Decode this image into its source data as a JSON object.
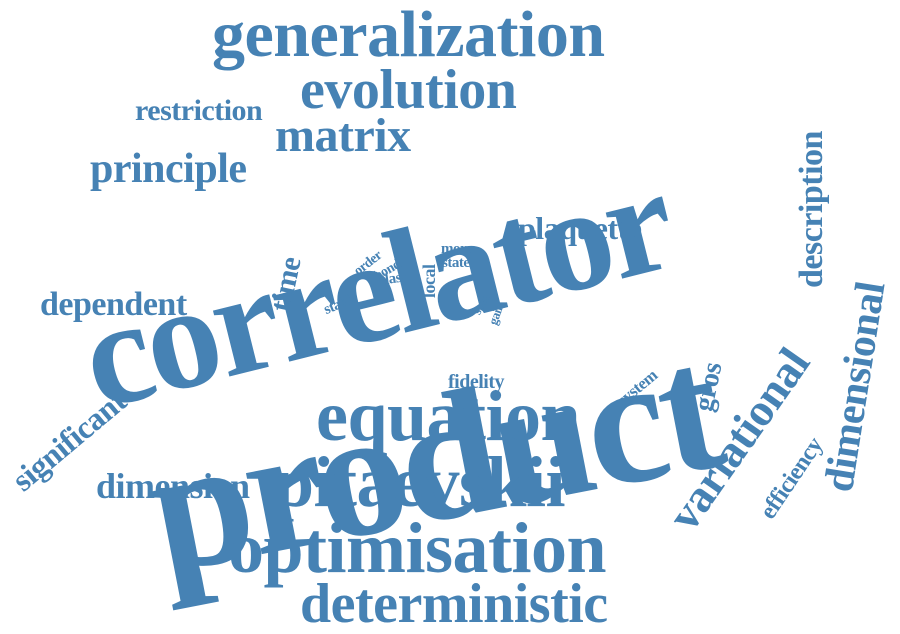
{
  "accent_color": "#4682b4",
  "background_color": "#ffffff",
  "words": {
    "generalization": "generalization",
    "evolution": "evolution",
    "restriction": "restriction",
    "matrix": "matrix",
    "principle": "principle",
    "correlator": "correlator",
    "product": "product",
    "plaquette": "plaquette",
    "description": "description",
    "dimensional": "dimensional",
    "time": "time",
    "order": "order",
    "bond": "bond",
    "stable": "stable",
    "class": "class",
    "local": "local",
    "more": "more",
    "state": "state",
    "spin": "spin",
    "gain": "gain",
    "dependent": "dependent",
    "significant": "significant",
    "system": "system",
    "fidelity": "fidelity",
    "gros": "gros",
    "variational": "variational",
    "efficiency": "efficiency",
    "equation": "equation",
    "dimension": "dimension",
    "pitaevskii": "pitaevskii",
    "optimisation": "optimisation",
    "deterministic": "deterministic"
  }
}
